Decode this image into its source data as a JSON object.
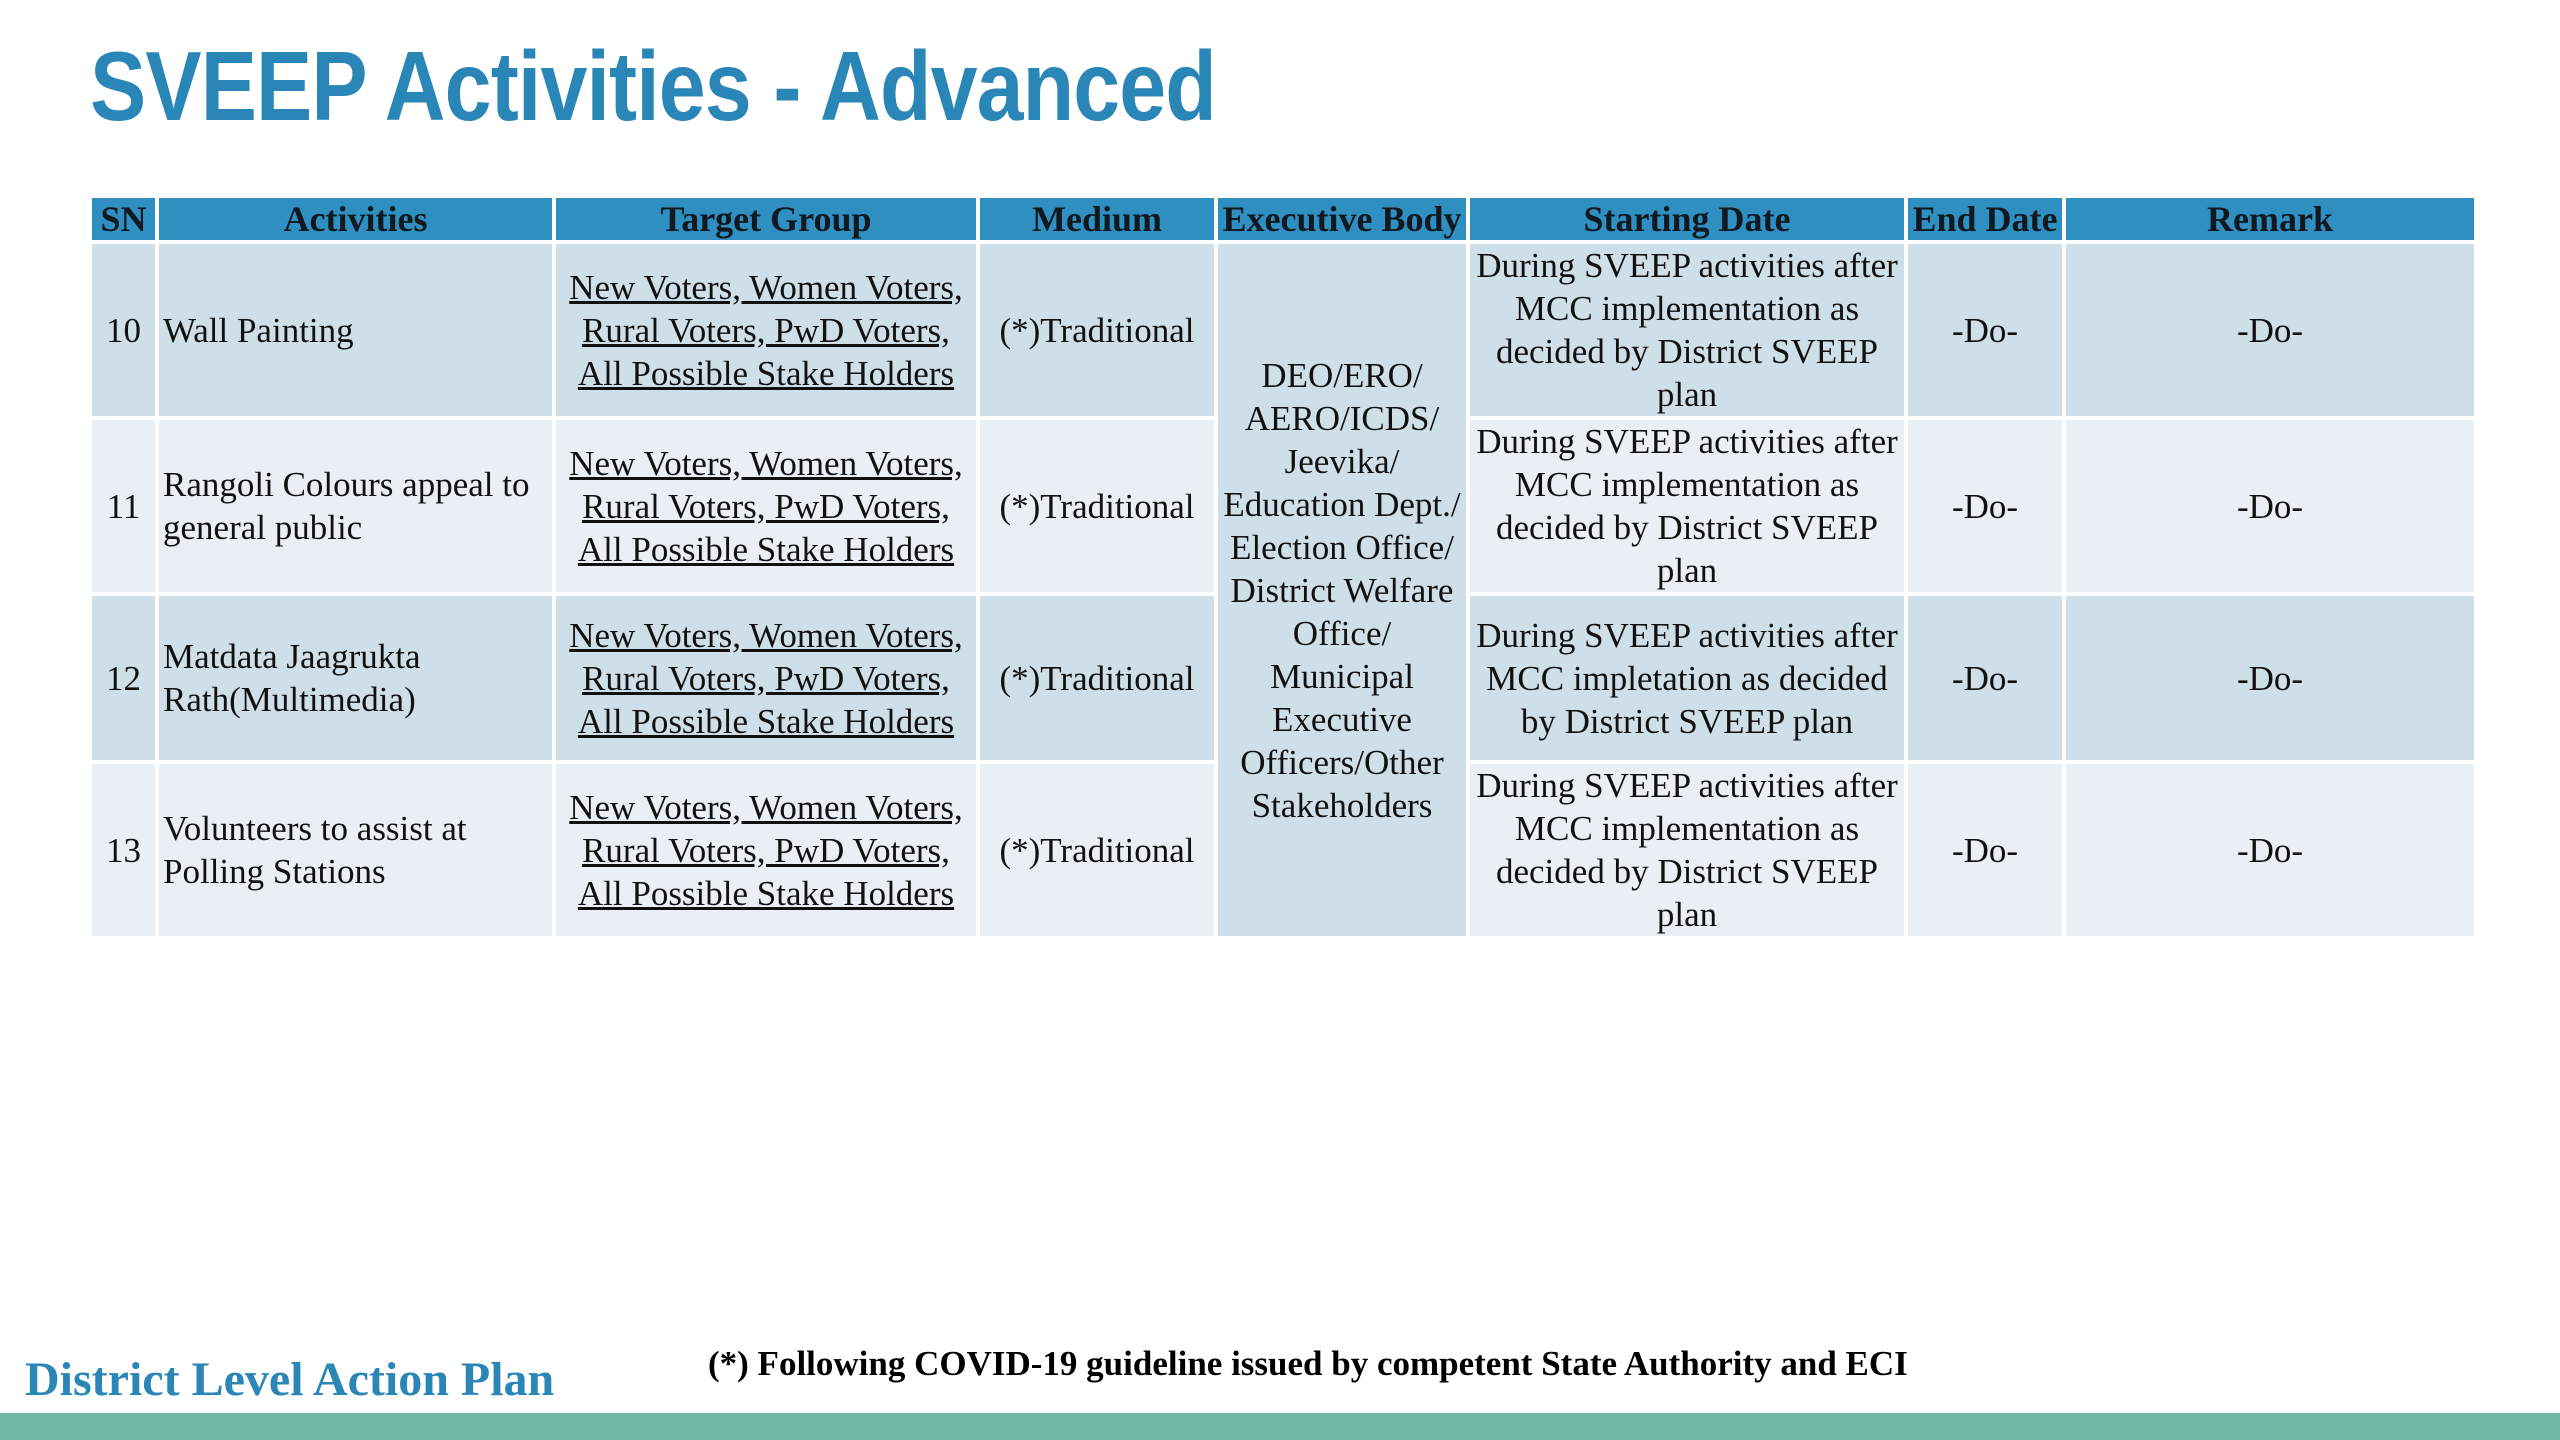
{
  "title": "SVEEP Activities - Advanced",
  "colors": {
    "title": "#2a86b6",
    "header_bg": "#2e8fc0",
    "row_dark": "#cfdfea",
    "row_light": "#e9eff4",
    "footer_bar": "#6fb9a4"
  },
  "table": {
    "headers": [
      "SN",
      "Activities",
      "Target Group",
      "Medium",
      "Executive Body",
      "Starting Date",
      "End Date",
      "Remark"
    ],
    "executive_body": "DEO/ERO/ AERO/ICDS/ Jeevika/ Education Dept./ Election Office/ District Welfare Office/ Municipal Executive Officers/Other Stakeholders",
    "rows": [
      {
        "sn": "10",
        "activity": "Wall Painting",
        "target_group": [
          "New Voters, Women Voters,",
          "Rural Voters, PwD Voters,",
          "All Possible Stake Holders"
        ],
        "medium": "(*)Traditional",
        "starting_date": "During SVEEP activities after MCC implementation as decided by District SVEEP plan",
        "end_date": "-Do-",
        "remark": "-Do-"
      },
      {
        "sn": "11",
        "activity": "Rangoli  Colours appeal to general public",
        "target_group": [
          "New Voters, Women Voters,",
          "Rural Voters, PwD Voters,",
          "All Possible Stake Holders"
        ],
        "medium": "(*)Traditional",
        "starting_date": "During SVEEP activities after MCC implementation as decided by District SVEEP plan",
        "end_date": "-Do-",
        "remark": "-Do-"
      },
      {
        "sn": "12",
        "activity": "Matdata Jaagrukta Rath(Multimedia)",
        "target_group": [
          "New Voters, Women Voters,",
          "Rural Voters, PwD Voters,",
          "All Possible Stake Holders"
        ],
        "medium": "(*)Traditional",
        "starting_date": "During SVEEP activities after MCC impletation as decided by District SVEEP plan",
        "end_date": "-Do-",
        "remark": "-Do-"
      },
      {
        "sn": "13",
        "activity": "Volunteers to assist at Polling Stations",
        "target_group": [
          "New Voters, Women Voters,",
          "Rural Voters, PwD Voters,",
          "All Possible Stake Holders"
        ],
        "medium": "(*)Traditional",
        "starting_date": "During SVEEP activities after MCC implementation as decided by District SVEEP plan",
        "end_date": "-Do-",
        "remark": "-Do-"
      }
    ]
  },
  "footer": {
    "title": "District Level Action Plan",
    "footnote": "(*) Following COVID-19 guideline issued by competent State Authority and ECI"
  }
}
